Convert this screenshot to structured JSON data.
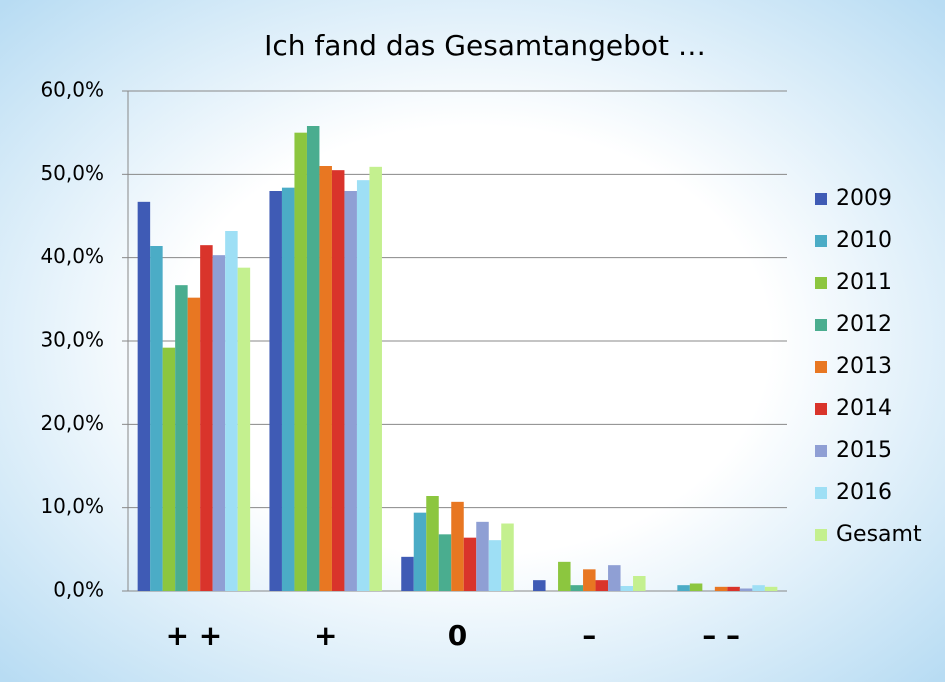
{
  "chart_data": {
    "type": "bar",
    "title": "Ich fand das Gesamtangebot …",
    "categories": [
      "+ +",
      "+",
      "0",
      "–",
      "– –"
    ],
    "series": [
      {
        "name": "2009",
        "color": "#3f5bb5",
        "values": [
          46.7,
          48.0,
          4.1,
          1.3,
          0
        ]
      },
      {
        "name": "2010",
        "color": "#4bacc6",
        "values": [
          41.4,
          48.4,
          9.4,
          0,
          0.7
        ]
      },
      {
        "name": "2011",
        "color": "#8cc63f",
        "values": [
          29.2,
          55.0,
          11.4,
          3.5,
          0.9
        ]
      },
      {
        "name": "2012",
        "color": "#4aad8f",
        "values": [
          36.7,
          55.8,
          6.8,
          0.7,
          0
        ]
      },
      {
        "name": "2013",
        "color": "#e87722",
        "values": [
          35.2,
          51.0,
          10.7,
          2.6,
          0.5
        ]
      },
      {
        "name": "2014",
        "color": "#d9342b",
        "values": [
          41.5,
          50.5,
          6.4,
          1.3,
          0.5
        ]
      },
      {
        "name": "2015",
        "color": "#8f9fd4",
        "values": [
          40.3,
          48.0,
          8.3,
          3.1,
          0.3
        ]
      },
      {
        "name": "2016",
        "color": "#9edff5",
        "values": [
          43.2,
          49.3,
          6.1,
          0.6,
          0.7
        ]
      },
      {
        "name": "Gesamt",
        "color": "#c4f08f",
        "values": [
          38.8,
          50.9,
          8.1,
          1.8,
          0.5
        ]
      }
    ],
    "ylim": [
      0,
      60
    ],
    "yticks": [
      {
        "value": 0,
        "label": "0,0%"
      },
      {
        "value": 10,
        "label": "10,0%"
      },
      {
        "value": 20,
        "label": "20,0%"
      },
      {
        "value": 30,
        "label": "30,0%"
      },
      {
        "value": 40,
        "label": "40,0%"
      },
      {
        "value": 50,
        "label": "50,0%"
      },
      {
        "value": 60,
        "label": "60,0%"
      }
    ],
    "grid": true,
    "legend": "right"
  }
}
